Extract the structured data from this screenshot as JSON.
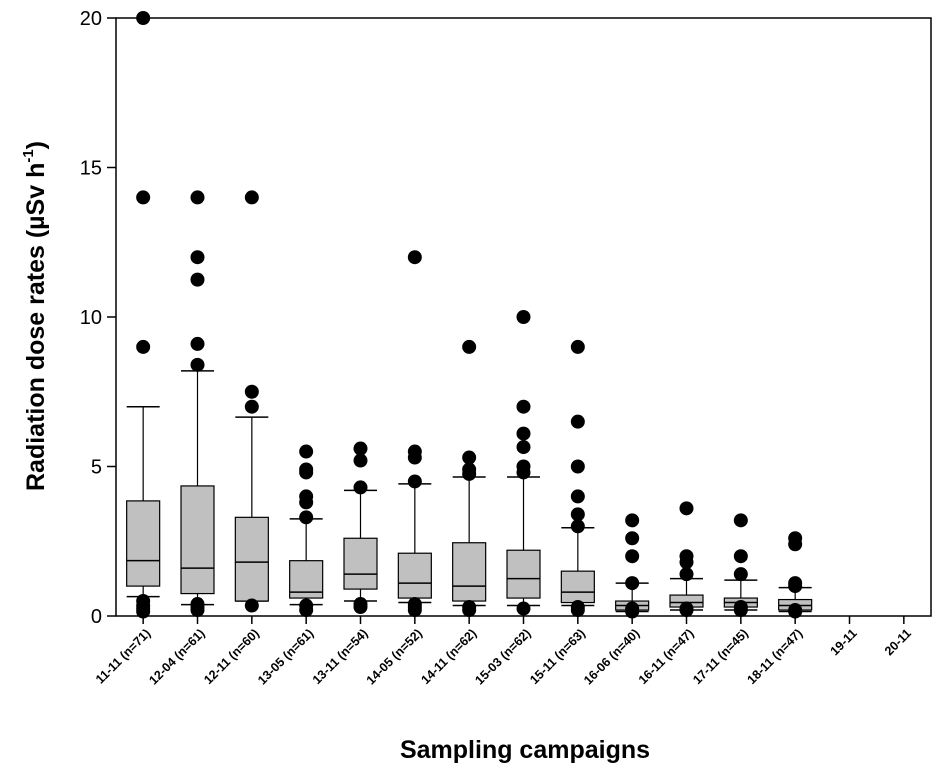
{
  "chart_data": {
    "type": "box",
    "title": "",
    "xlabel": "Sampling campaigns",
    "ylabel": {
      "main": "Radiation dose rates (µSv h",
      "superscript": "-1",
      "close": ")"
    },
    "ylim": [
      0,
      20
    ],
    "yticks": [
      "0",
      "5",
      "10",
      "15",
      "20"
    ],
    "grid": false,
    "colors": {
      "box_fill": "#c0c0c0",
      "stroke": "#000000",
      "outlier": "#000000"
    },
    "categories": [
      "11-11 (n=71)",
      "12-04 (n=61)",
      "12-11 (n=60)",
      "13-05 (n=61)",
      "13-11 (n=54)",
      "14-05 (n=52)",
      "14-11 (n=62)",
      "15-03 (n=62)",
      "15-11 (n=63)",
      "16-06 (n=40)",
      "16-11 (n=47)",
      "17-11 (n=45)",
      "18-11 (n=47)",
      "19-11",
      "20-11"
    ],
    "boxes": [
      {
        "q1": 1.0,
        "median": 1.85,
        "q3": 3.85,
        "whisker_low": 0.65,
        "whisker_high": 7.0,
        "outliers": [
          20.0,
          14.0,
          9.0,
          0.5,
          0.35,
          0.25,
          0.15
        ]
      },
      {
        "q1": 0.75,
        "median": 1.6,
        "q3": 4.35,
        "whisker_low": 0.38,
        "whisker_high": 8.2,
        "outliers": [
          14.0,
          12.0,
          11.25,
          9.1,
          8.4,
          0.4,
          0.3,
          0.2
        ]
      },
      {
        "q1": 0.5,
        "median": 1.8,
        "q3": 3.3,
        "whisker_low": 0.5,
        "whisker_high": 6.65,
        "outliers": [
          14.0,
          7.5,
          7.0,
          0.35
        ]
      },
      {
        "q1": 0.6,
        "median": 0.8,
        "q3": 1.85,
        "whisker_low": 0.38,
        "whisker_high": 3.25,
        "outliers": [
          5.5,
          4.9,
          4.8,
          4.0,
          3.8,
          3.3,
          0.35,
          0.2
        ]
      },
      {
        "q1": 0.9,
        "median": 1.4,
        "q3": 2.6,
        "whisker_low": 0.5,
        "whisker_high": 4.2,
        "outliers": [
          5.6,
          5.2,
          4.3,
          0.4,
          0.3
        ]
      },
      {
        "q1": 0.6,
        "median": 1.1,
        "q3": 2.1,
        "whisker_low": 0.45,
        "whisker_high": 4.42,
        "outliers": [
          12.0,
          5.5,
          5.3,
          4.5,
          0.4,
          0.3,
          0.2
        ]
      },
      {
        "q1": 0.5,
        "median": 1.0,
        "q3": 2.45,
        "whisker_low": 0.35,
        "whisker_high": 4.65,
        "outliers": [
          9.0,
          5.3,
          4.9,
          4.75,
          0.3,
          0.2
        ]
      },
      {
        "q1": 0.6,
        "median": 1.25,
        "q3": 2.2,
        "whisker_low": 0.35,
        "whisker_high": 4.65,
        "outliers": [
          10.0,
          7.0,
          6.1,
          5.65,
          5.0,
          4.8,
          0.25
        ]
      },
      {
        "q1": 0.45,
        "median": 0.8,
        "q3": 1.5,
        "whisker_low": 0.35,
        "whisker_high": 2.95,
        "outliers": [
          9.0,
          6.5,
          5.0,
          4.0,
          3.4,
          3.0,
          0.3,
          0.2
        ]
      },
      {
        "q1": 0.2,
        "median": 0.35,
        "q3": 0.5,
        "whisker_low": 0.15,
        "whisker_high": 1.1,
        "outliers": [
          3.2,
          2.6,
          2.0,
          1.1,
          0.25,
          0.15
        ]
      },
      {
        "q1": 0.3,
        "median": 0.45,
        "q3": 0.7,
        "whisker_low": 0.2,
        "whisker_high": 1.25,
        "outliers": [
          3.6,
          2.0,
          1.8,
          1.4,
          0.25,
          0.2
        ]
      },
      {
        "q1": 0.3,
        "median": 0.45,
        "q3": 0.6,
        "whisker_low": 0.2,
        "whisker_high": 1.2,
        "outliers": [
          3.2,
          2.0,
          1.4,
          0.3,
          0.2
        ]
      },
      {
        "q1": 0.2,
        "median": 0.35,
        "q3": 0.55,
        "whisker_low": 0.15,
        "whisker_high": 0.95,
        "outliers": [
          2.6,
          2.4,
          1.1,
          1.0,
          0.2,
          0.15
        ]
      },
      null,
      null
    ]
  }
}
